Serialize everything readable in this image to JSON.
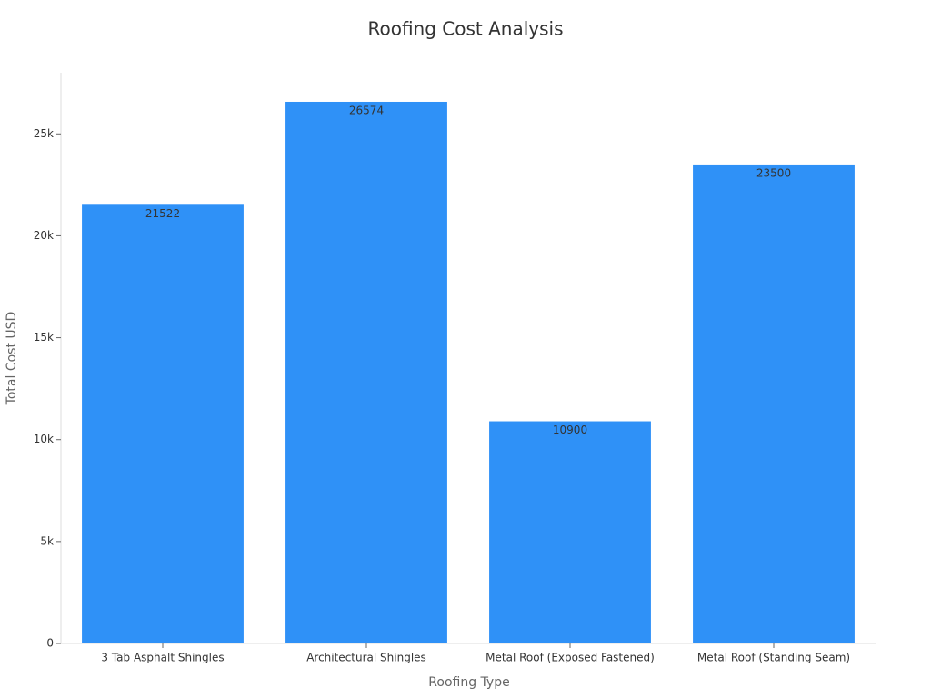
{
  "chart_data": {
    "type": "bar",
    "title": "Roofing Cost Analysis",
    "x_label": "Roofing Type",
    "y_label": "Total Cost USD",
    "categories": [
      "3 Tab Asphalt Shingles",
      "Architectural Shingles",
      "Metal Roof (Exposed Fastened)",
      "Metal Roof (Standing Seam)"
    ],
    "values": [
      21522,
      26574,
      10900,
      23500
    ],
    "color": "#2f91f7",
    "ylim": [
      0,
      28000
    ],
    "yticks": [
      0,
      {
        "value": 5000,
        "label": "5k"
      },
      {
        "value": 10000,
        "label": "10k"
      },
      {
        "value": 15000,
        "label": "15k"
      },
      {
        "value": 20000,
        "label": "20k"
      },
      {
        "value": 25000,
        "label": "25k"
      }
    ],
    "grid": false
  }
}
